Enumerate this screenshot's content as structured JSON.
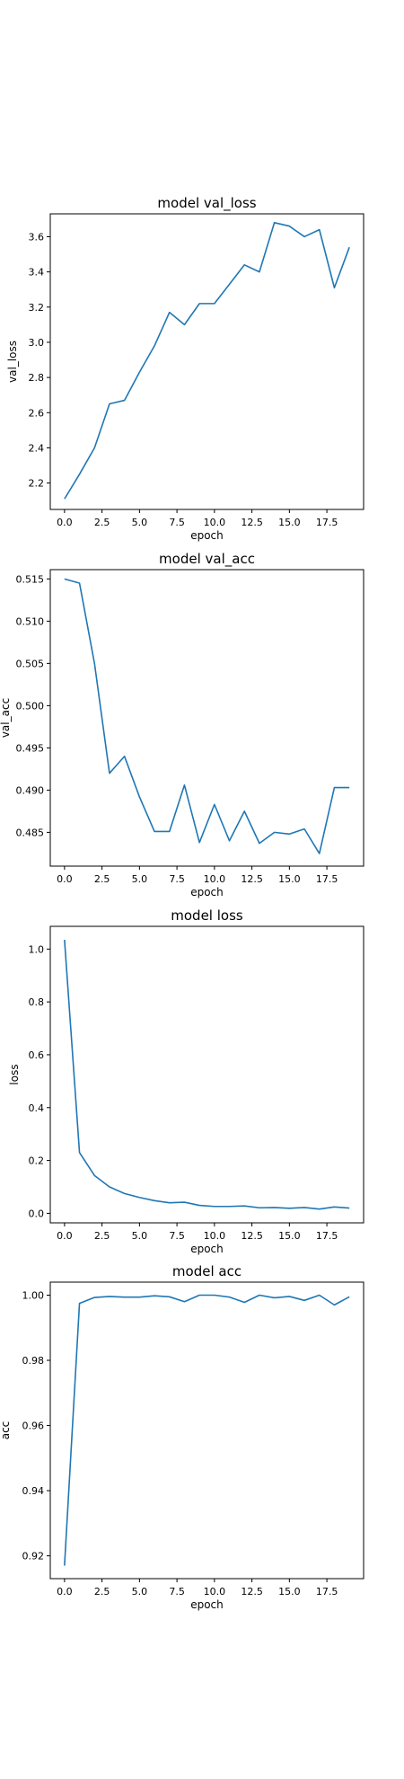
{
  "figure": {
    "line_color": "#1f77b4",
    "background": "#ffffff"
  },
  "chart_data": [
    {
      "type": "line",
      "title": "model val_loss",
      "xlabel": "epoch",
      "ylabel": "val_loss",
      "x": [
        0,
        1,
        2,
        3,
        4,
        5,
        6,
        7,
        8,
        9,
        10,
        11,
        12,
        13,
        14,
        15,
        16,
        17,
        18,
        19
      ],
      "series": [
        {
          "values": [
            2.11,
            2.25,
            2.4,
            2.65,
            2.67,
            2.83,
            2.98,
            3.17,
            3.1,
            3.22,
            3.22,
            3.33,
            3.44,
            3.4,
            3.68,
            3.66,
            3.6,
            3.64,
            3.31,
            3.54
          ]
        }
      ],
      "xlim": [
        -0.95,
        19.95
      ],
      "ylim": [
        2.05,
        3.73
      ],
      "xticks": [
        0.0,
        2.5,
        5.0,
        7.5,
        10.0,
        12.5,
        15.0,
        17.5
      ],
      "xtick_labels": [
        "0.0",
        "2.5",
        "5.0",
        "7.5",
        "10.0",
        "12.5",
        "15.0",
        "17.5"
      ],
      "yticks": [
        2.2,
        2.4,
        2.6,
        2.8,
        3.0,
        3.2,
        3.4,
        3.6
      ],
      "ytick_labels": [
        "2.2",
        "2.4",
        "2.6",
        "2.8",
        "3.0",
        "3.2",
        "3.4",
        "3.6"
      ],
      "grid": false
    },
    {
      "type": "line",
      "title": "model val_acc",
      "xlabel": "epoch",
      "ylabel": "val_acc",
      "x": [
        0,
        1,
        2,
        3,
        4,
        5,
        6,
        7,
        8,
        9,
        10,
        11,
        12,
        13,
        14,
        15,
        16,
        17,
        18,
        19
      ],
      "series": [
        {
          "values": [
            0.515,
            0.5145,
            0.505,
            0.492,
            0.494,
            0.4892,
            0.4851,
            0.4851,
            0.4906,
            0.4838,
            0.4883,
            0.484,
            0.4875,
            0.4837,
            0.485,
            0.4848,
            0.4854,
            0.4825,
            0.4903,
            0.4903
          ]
        }
      ],
      "xlim": [
        -0.95,
        19.95
      ],
      "ylim": [
        0.481,
        0.5161
      ],
      "xticks": [
        0.0,
        2.5,
        5.0,
        7.5,
        10.0,
        12.5,
        15.0,
        17.5
      ],
      "xtick_labels": [
        "0.0",
        "2.5",
        "5.0",
        "7.5",
        "10.0",
        "12.5",
        "15.0",
        "17.5"
      ],
      "yticks": [
        0.485,
        0.49,
        0.495,
        0.5,
        0.505,
        0.51,
        0.515
      ],
      "ytick_labels": [
        "0.485",
        "0.490",
        "0.495",
        "0.500",
        "0.505",
        "0.510",
        "0.515"
      ],
      "grid": false
    },
    {
      "type": "line",
      "title": "model loss",
      "xlabel": "epoch",
      "ylabel": "loss",
      "x": [
        0,
        1,
        2,
        3,
        4,
        5,
        6,
        7,
        8,
        9,
        10,
        11,
        12,
        13,
        14,
        15,
        16,
        17,
        18,
        19
      ],
      "series": [
        {
          "values": [
            1.035,
            0.23,
            0.143,
            0.1,
            0.075,
            0.06,
            0.048,
            0.04,
            0.042,
            0.03,
            0.026,
            0.026,
            0.028,
            0.021,
            0.022,
            0.019,
            0.022,
            0.016,
            0.024,
            0.02
          ]
        }
      ],
      "xlim": [
        -0.95,
        19.95
      ],
      "ylim": [
        -0.036,
        1.086
      ],
      "xticks": [
        0.0,
        2.5,
        5.0,
        7.5,
        10.0,
        12.5,
        15.0,
        17.5
      ],
      "xtick_labels": [
        "0.0",
        "2.5",
        "5.0",
        "7.5",
        "10.0",
        "12.5",
        "15.0",
        "17.5"
      ],
      "yticks": [
        0.0,
        0.2,
        0.4,
        0.6,
        0.8,
        1.0
      ],
      "ytick_labels": [
        "0.0",
        "0.2",
        "0.4",
        "0.6",
        "0.8",
        "1.0"
      ],
      "grid": false
    },
    {
      "type": "line",
      "title": "model acc",
      "xlabel": "epoch",
      "ylabel": "acc",
      "x": [
        0,
        1,
        2,
        3,
        4,
        5,
        6,
        7,
        8,
        9,
        10,
        11,
        12,
        13,
        14,
        15,
        16,
        17,
        18,
        19
      ],
      "series": [
        {
          "values": [
            0.917,
            0.9975,
            0.9993,
            0.9996,
            0.9994,
            0.9994,
            0.9998,
            0.9995,
            0.998,
            1.0,
            1.0,
            0.9994,
            0.9978,
            1.0,
            0.9992,
            0.9996,
            0.9984,
            1.0,
            0.997,
            0.9995
          ]
        }
      ],
      "xlim": [
        -0.95,
        19.95
      ],
      "ylim": [
        0.913,
        1.004
      ],
      "xticks": [
        0.0,
        2.5,
        5.0,
        7.5,
        10.0,
        12.5,
        15.0,
        17.5
      ],
      "xtick_labels": [
        "0.0",
        "2.5",
        "5.0",
        "7.5",
        "10.0",
        "12.5",
        "15.0",
        "17.5"
      ],
      "yticks": [
        0.92,
        0.94,
        0.96,
        0.98,
        1.0
      ],
      "ytick_labels": [
        "0.92",
        "0.94",
        "0.96",
        "0.98",
        "1.00"
      ],
      "grid": false
    }
  ]
}
